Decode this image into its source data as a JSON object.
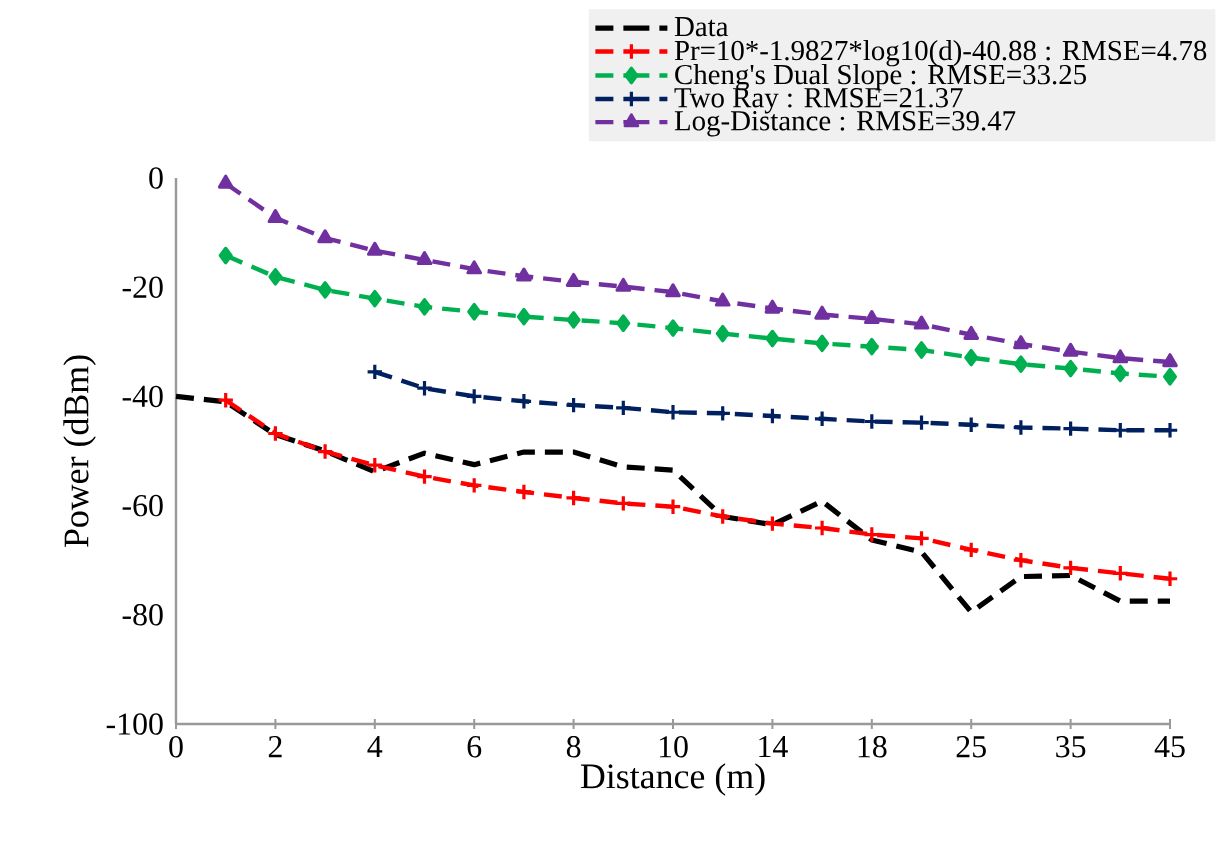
{
  "chart_data": {
    "type": "line",
    "xlabel": "Distance (m)",
    "ylabel": "Power (dBm)",
    "categories": [
      "0",
      null,
      "2",
      null,
      "4",
      null,
      "6",
      null,
      "8",
      null,
      "10",
      null,
      "14",
      null,
      "18",
      null,
      "25",
      null,
      "35",
      null,
      "45"
    ],
    "ylim": [
      -100,
      0
    ],
    "yticks": [
      -100,
      -80,
      -60,
      -40,
      -20,
      0
    ],
    "legend": "top right",
    "grid": false,
    "line_style": "dashed",
    "series": [
      {
        "name": "Data",
        "color": "#000000",
        "marker": "none",
        "values": [
          -40,
          -41,
          -47,
          -50,
          -53.8,
          -50.4,
          -52.5,
          -50.2,
          -50.2,
          -52.9,
          -53.5,
          -62,
          -63.5,
          -59.2,
          -66.3,
          -68.5,
          -79.5,
          -73,
          -72.8,
          -77.5,
          -77.5
        ]
      },
      {
        "name": "Pr=10*-1.9827*log10(d)-40.88 : RMSE=4.78",
        "color": "#ff0000",
        "marker": "cross",
        "values": [
          null,
          -40.7,
          -46.8,
          -50.1,
          -52.6,
          -54.7,
          -56.3,
          -57.5,
          -58.6,
          -59.6,
          -60.2,
          -62,
          -63.3,
          -64.1,
          -65.3,
          -66,
          -68.1,
          -70,
          -71.4,
          -72.4,
          -73.4
        ]
      },
      {
        "name": "Cheng's Dual Slope : RMSE=33.25",
        "color": "#00b050",
        "marker": "diamond",
        "values": [
          null,
          -14.2,
          -18.1,
          -20.5,
          -22.1,
          -23.6,
          -24.5,
          -25.4,
          -26,
          -26.6,
          -27.5,
          -28.5,
          -29.4,
          -30.3,
          -30.9,
          -31.5,
          -32.9,
          -34.1,
          -34.9,
          -35.8,
          -36.4
        ]
      },
      {
        "name": "Two Ray : RMSE=21.37",
        "color": "#002060",
        "marker": "cross",
        "values": [
          null,
          null,
          null,
          null,
          -35.5,
          -38.5,
          -40,
          -40.9,
          -41.6,
          -42.1,
          -42.9,
          -43.1,
          -43.6,
          -44.1,
          -44.6,
          -44.8,
          -45.2,
          -45.7,
          -45.9,
          -46.2,
          -46.2
        ]
      },
      {
        "name": "Log-Distance : RMSE=39.47",
        "color": "#7030a0",
        "marker": "triangle",
        "values": [
          null,
          -1,
          -7.3,
          -11,
          -13.3,
          -15,
          -16.7,
          -18,
          -19,
          -19.9,
          -20.9,
          -22.6,
          -23.9,
          -25,
          -25.8,
          -26.8,
          -28.7,
          -30.4,
          -31.8,
          -33,
          -33.7
        ]
      }
    ]
  }
}
